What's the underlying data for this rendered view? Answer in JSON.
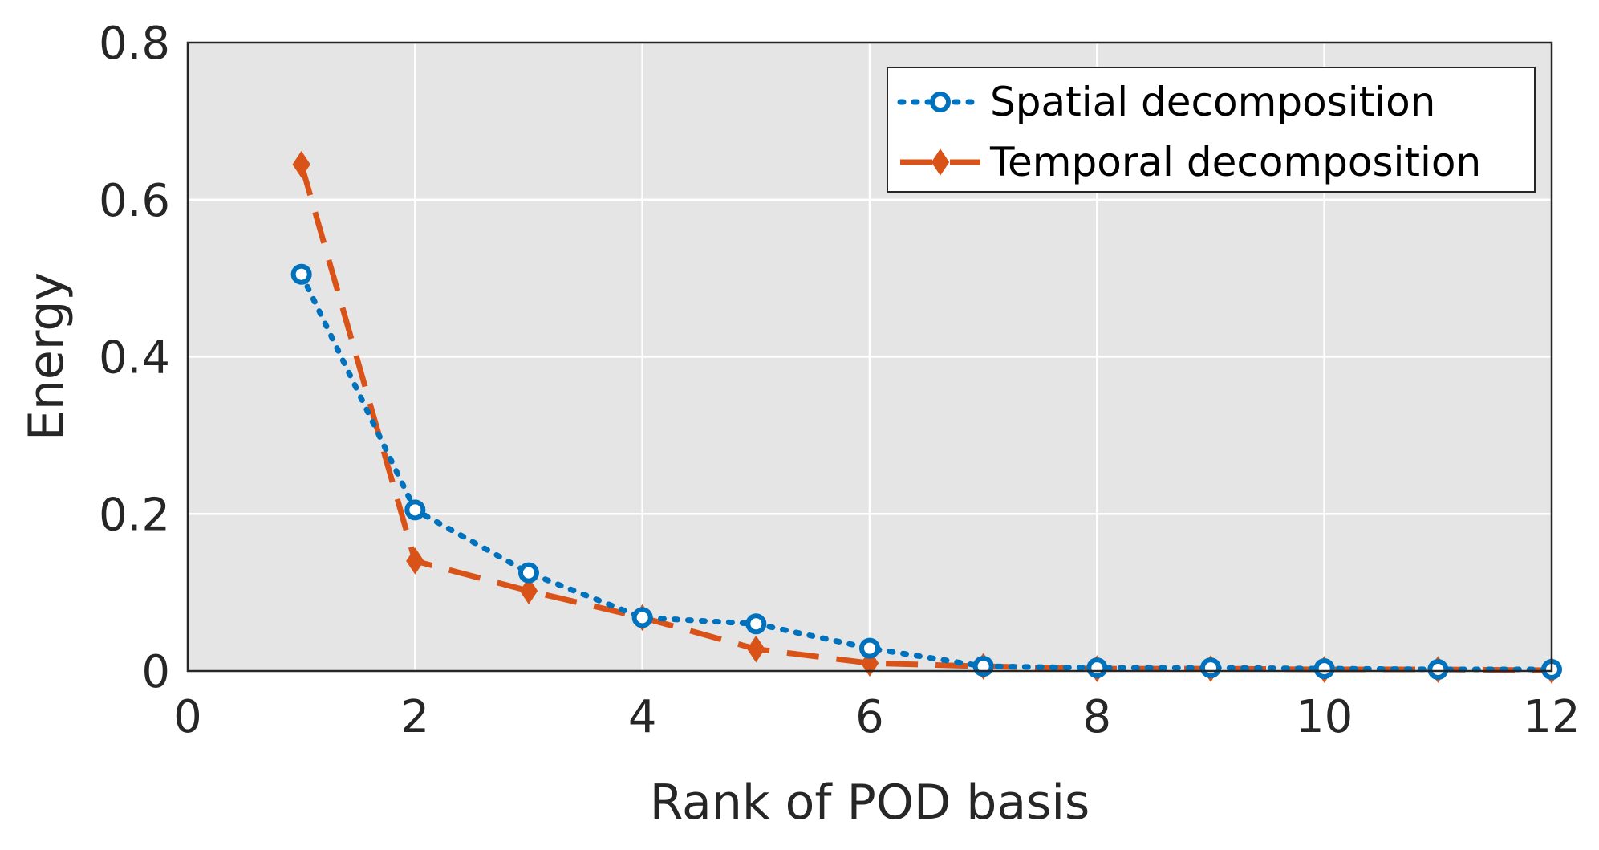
{
  "chart_data": {
    "type": "line",
    "title": "",
    "xlabel": "Rank of POD basis",
    "ylabel": "Energy",
    "xlim": [
      0,
      12
    ],
    "ylim": [
      0,
      0.8
    ],
    "xticks": [
      "0",
      "2",
      "4",
      "6",
      "8",
      "10",
      "12"
    ],
    "yticks": [
      "0",
      "0.2",
      "0.4",
      "0.6",
      "0.8"
    ],
    "grid": true,
    "legend_position": "top-right",
    "x": [
      1,
      2,
      3,
      4,
      5,
      6,
      7,
      8,
      9,
      10,
      11,
      12
    ],
    "series": [
      {
        "name": "Spatial decomposition",
        "color": "#0072BD",
        "line_style": "dotted",
        "marker": "circle",
        "values": [
          0.505,
          0.205,
          0.125,
          0.068,
          0.06,
          0.029,
          0.006,
          0.004,
          0.004,
          0.003,
          0.002,
          0.002
        ]
      },
      {
        "name": "Temporal decomposition",
        "color": "#D95319",
        "line_style": "dashed",
        "marker": "diamond",
        "values": [
          0.645,
          0.14,
          0.102,
          0.068,
          0.028,
          0.01,
          0.006,
          0.003,
          0.003,
          0.002,
          0.002,
          0.001
        ]
      }
    ]
  }
}
